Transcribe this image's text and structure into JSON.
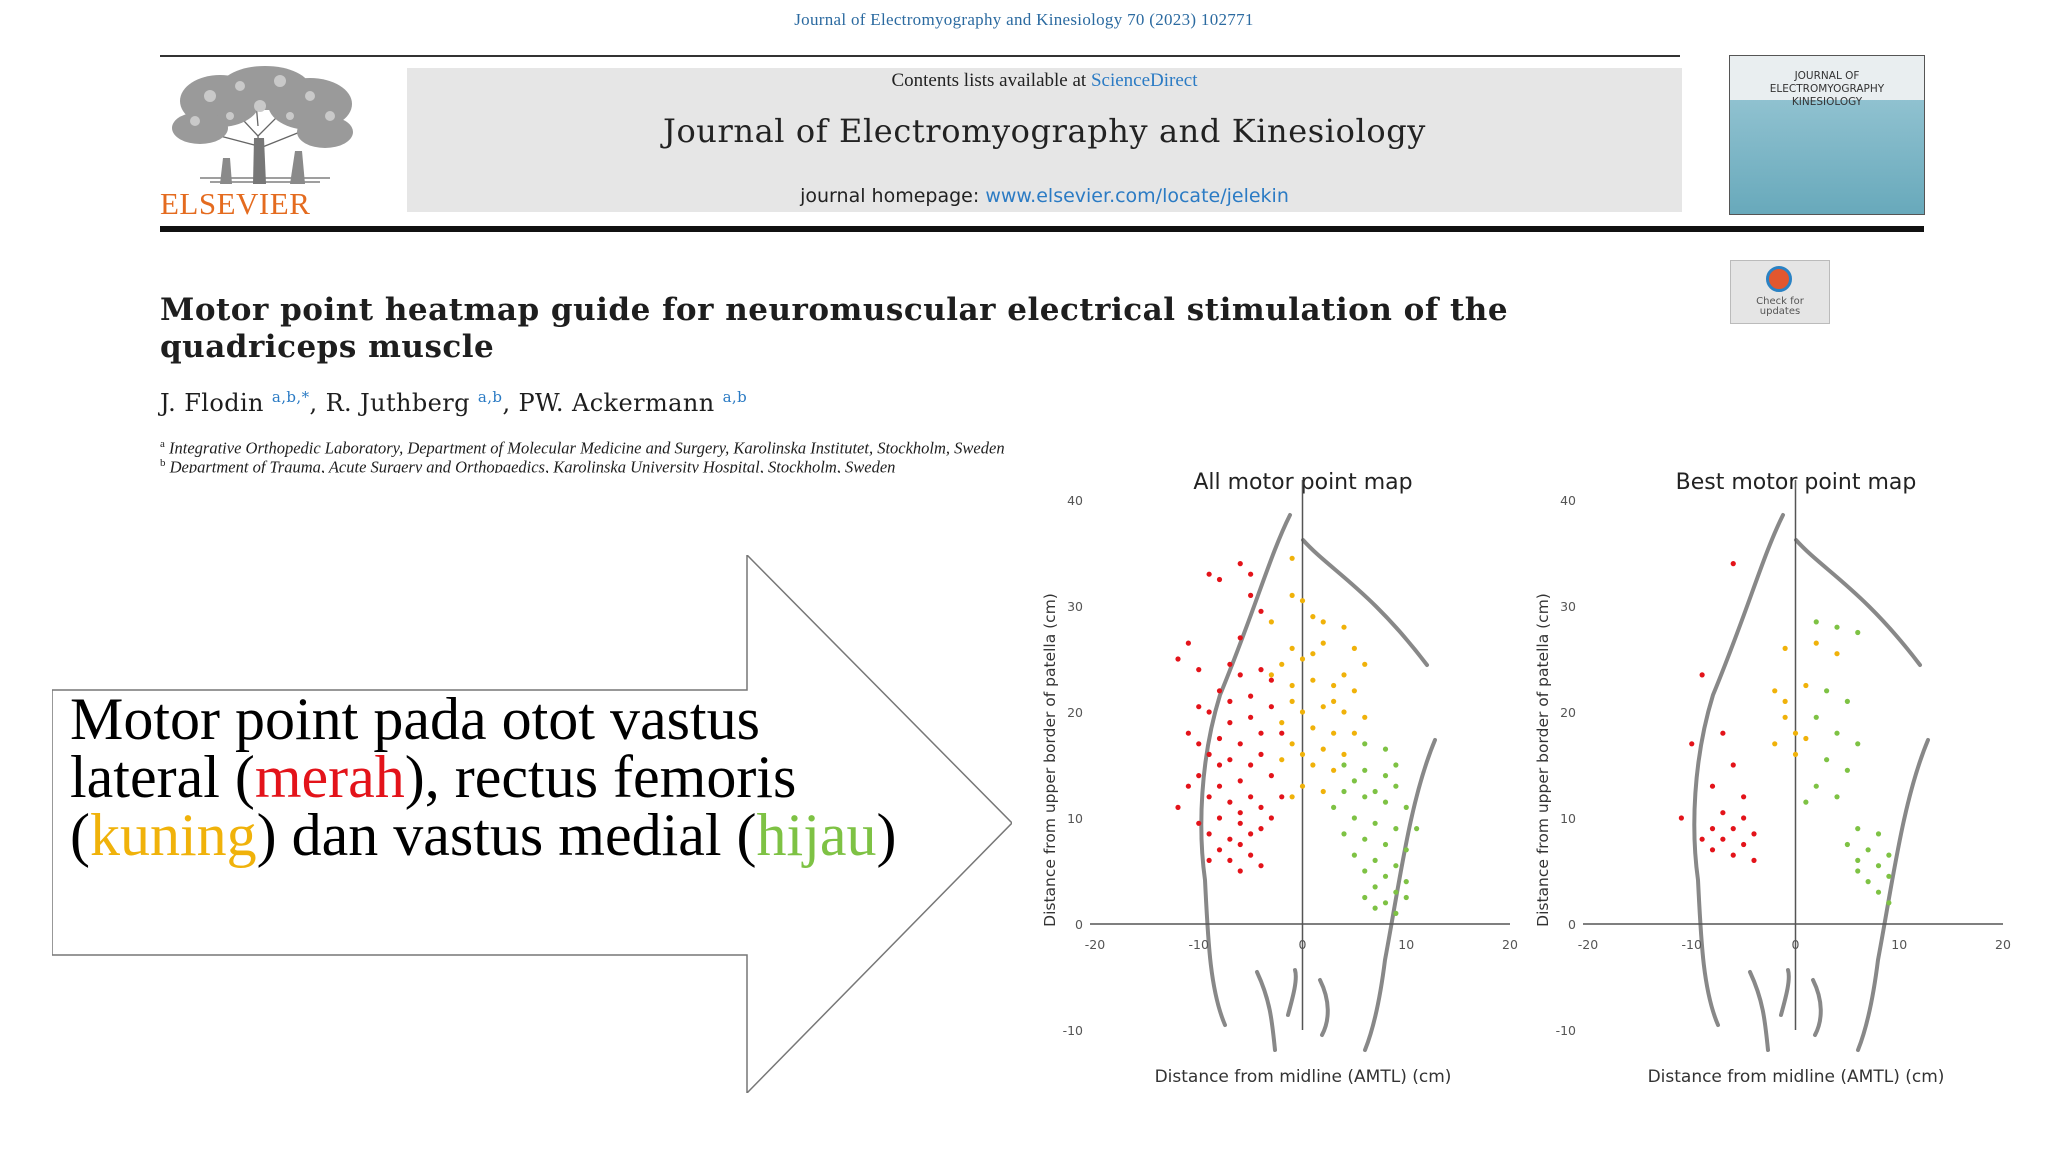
{
  "citation": "Journal of Electromyography and Kinesiology 70 (2023) 102771",
  "publisher": "ELSEVIER",
  "banner": {
    "contents_prefix": "Contents lists available at",
    "sciencedirect": "ScienceDirect",
    "journal_title": "Journal of Electromyography and Kinesiology",
    "homepage_prefix": "journal homepage:",
    "homepage_url": "www.elsevier.com/locate/jelekin"
  },
  "cover": {
    "line1": "JOURNAL OF",
    "line2": "ELECTROMYOGRAPHY",
    "line3": "KINESIOLOGY"
  },
  "check_updates": {
    "line1": "Check for",
    "line2": "updates"
  },
  "article": {
    "title": "Motor point heatmap guide for neuromuscular electrical stimulation of the quadriceps muscle",
    "authors": [
      {
        "name": "J. Flodin",
        "sup": "a,b,*",
        "sep": ", "
      },
      {
        "name": "R. Juthberg",
        "sup": "a,b",
        "sep": ", "
      },
      {
        "name": "PW. Ackermann",
        "sup": "a,b",
        "sep": ""
      }
    ],
    "affiliations": [
      {
        "mark": "a",
        "text": "Integrative Orthopedic Laboratory, Department of Molecular Medicine and Surgery, Karolinska Institutet, Stockholm, Sweden"
      },
      {
        "mark": "b",
        "text": "Department of Trauma, Acute Surgery and Orthopaedics, Karolinska University Hospital, Stockholm, Sweden"
      }
    ]
  },
  "callout": {
    "t1": "Motor point pada otot vastus lateral (",
    "red": "merah",
    "t2": "), rectus femoris (",
    "yellow": "kuning",
    "t3": ") dan vastus medial (",
    "green": "hijau",
    "t4": ")"
  },
  "colors": {
    "red": "#e3131a",
    "yellow": "#f0b20a",
    "green": "#7ec244",
    "link": "#2b7bc4",
    "publisher": "#e46b1f"
  },
  "chart_data": [
    {
      "type": "scatter",
      "title": "All motor point map",
      "xlabel": "Distance from midline (AMTL) (cm)",
      "ylabel": "Distance from upper border of patella (cm)",
      "xlim": [
        -20,
        20
      ],
      "ylim": [
        -10,
        40
      ],
      "xticks": [
        "-20",
        "-10",
        "0",
        "10",
        "20"
      ],
      "yticks": [
        "40",
        "30",
        "20",
        "10",
        "0",
        "-10"
      ],
      "series": [
        {
          "name": "vastus lateral",
          "color": "#e3131a",
          "points": [
            [
              -12,
              25
            ],
            [
              -11,
              26.5
            ],
            [
              -10,
              24
            ],
            [
              -9,
              33
            ],
            [
              -8,
              32.5
            ],
            [
              -6,
              34
            ],
            [
              -5,
              33
            ],
            [
              -5,
              31
            ],
            [
              -4,
              29.5
            ],
            [
              -6,
              27
            ],
            [
              -8,
              22
            ],
            [
              -7,
              21
            ],
            [
              -9,
              20
            ],
            [
              -7,
              19
            ],
            [
              -5,
              19.5
            ],
            [
              -4,
              18
            ],
            [
              -6,
              17
            ],
            [
              -8,
              17.5
            ],
            [
              -10,
              17
            ],
            [
              -9,
              16
            ],
            [
              -7,
              15.5
            ],
            [
              -5,
              15
            ],
            [
              -4,
              16
            ],
            [
              -3,
              14
            ],
            [
              -6,
              13.5
            ],
            [
              -8,
              13
            ],
            [
              -10,
              14
            ],
            [
              -11,
              13
            ],
            [
              -9,
              12
            ],
            [
              -7,
              11.5
            ],
            [
              -5,
              12
            ],
            [
              -4,
              11
            ],
            [
              -6,
              10.5
            ],
            [
              -8,
              10
            ],
            [
              -10,
              9.5
            ],
            [
              -9,
              8.5
            ],
            [
              -7,
              8
            ],
            [
              -5,
              8.5
            ],
            [
              -4,
              9
            ],
            [
              -6,
              7.5
            ],
            [
              -8,
              7
            ],
            [
              -7,
              6
            ],
            [
              -5,
              6.5
            ],
            [
              -9,
              6
            ],
            [
              -6,
              5
            ],
            [
              -4,
              5.5
            ],
            [
              -3,
              20.5
            ],
            [
              -3,
              23
            ],
            [
              -6,
              23.5
            ],
            [
              -4,
              24
            ],
            [
              -2,
              18
            ],
            [
              -2,
              12
            ],
            [
              -3,
              10
            ],
            [
              -11,
              18
            ],
            [
              -12,
              11
            ],
            [
              -10,
              20.5
            ],
            [
              -5,
              21.5
            ],
            [
              -7,
              24.5
            ],
            [
              -6,
              9.5
            ],
            [
              -8,
              15
            ]
          ]
        },
        {
          "name": "rectus femoris",
          "color": "#f0b20a",
          "points": [
            [
              -1,
              34.5
            ],
            [
              -1,
              31
            ],
            [
              1,
              29
            ],
            [
              2,
              28.5
            ],
            [
              4,
              28
            ],
            [
              -1,
              26
            ],
            [
              0,
              25
            ],
            [
              -2,
              24.5
            ],
            [
              -3,
              23.5
            ],
            [
              1,
              23
            ],
            [
              3,
              22.5
            ],
            [
              5,
              22
            ],
            [
              6,
              24.5
            ],
            [
              -1,
              21
            ],
            [
              0,
              20
            ],
            [
              2,
              20.5
            ],
            [
              4,
              20
            ],
            [
              6,
              19.5
            ],
            [
              -2,
              19
            ],
            [
              1,
              18.5
            ],
            [
              3,
              18
            ],
            [
              5,
              18
            ],
            [
              -1,
              17
            ],
            [
              0,
              16
            ],
            [
              2,
              16.5
            ],
            [
              4,
              16
            ],
            [
              -2,
              15.5
            ],
            [
              1,
              15
            ],
            [
              3,
              14.5
            ],
            [
              0,
              13
            ],
            [
              -1,
              12
            ],
            [
              2,
              12.5
            ],
            [
              3,
              21
            ],
            [
              1,
              25.5
            ],
            [
              -3,
              28.5
            ],
            [
              0,
              30.5
            ],
            [
              5,
              26
            ],
            [
              2,
              26.5
            ],
            [
              -1,
              22.5
            ],
            [
              4,
              23.5
            ]
          ]
        },
        {
          "name": "vastus medial",
          "color": "#7ec244",
          "points": [
            [
              6,
              17
            ],
            [
              8,
              16.5
            ],
            [
              4,
              15
            ],
            [
              6,
              14.5
            ],
            [
              8,
              14
            ],
            [
              9,
              13
            ],
            [
              4,
              12.5
            ],
            [
              6,
              12
            ],
            [
              8,
              11.5
            ],
            [
              10,
              11
            ],
            [
              5,
              10
            ],
            [
              7,
              9.5
            ],
            [
              9,
              9
            ],
            [
              4,
              8.5
            ],
            [
              6,
              8
            ],
            [
              8,
              7.5
            ],
            [
              10,
              7
            ],
            [
              5,
              6.5
            ],
            [
              7,
              6
            ],
            [
              9,
              5.5
            ],
            [
              6,
              5
            ],
            [
              8,
              4.5
            ],
            [
              10,
              4
            ],
            [
              7,
              3.5
            ],
            [
              9,
              3
            ],
            [
              6,
              2.5
            ],
            [
              8,
              2
            ],
            [
              9,
              1
            ],
            [
              7,
              1.5
            ],
            [
              10,
              2.5
            ],
            [
              5,
              13.5
            ],
            [
              7,
              12.5
            ],
            [
              3,
              11
            ],
            [
              11,
              9
            ],
            [
              9,
              15
            ]
          ]
        }
      ]
    },
    {
      "type": "scatter",
      "title": "Best motor point map",
      "xlabel": "Distance from midline (AMTL) (cm)",
      "ylabel": "Distance from upper border of patella (cm)",
      "xlim": [
        -20,
        20
      ],
      "ylim": [
        -10,
        40
      ],
      "xticks": [
        "-20",
        "-10",
        "0",
        "10",
        "20"
      ],
      "yticks": [
        "40",
        "30",
        "20",
        "10",
        "0",
        "-10"
      ],
      "series": [
        {
          "name": "vastus lateral",
          "color": "#e3131a",
          "points": [
            [
              -6,
              34
            ],
            [
              -9,
              23.5
            ],
            [
              -7,
              18
            ],
            [
              -10,
              17
            ],
            [
              -6,
              15
            ],
            [
              -8,
              13
            ],
            [
              -5,
              12
            ],
            [
              -7,
              10.5
            ],
            [
              -8,
              9
            ],
            [
              -6,
              9
            ],
            [
              -4,
              8.5
            ],
            [
              -7,
              8
            ],
            [
              -5,
              7.5
            ],
            [
              -9,
              8
            ],
            [
              -6,
              6.5
            ],
            [
              -4,
              6
            ],
            [
              -8,
              7
            ],
            [
              -11,
              10
            ],
            [
              -5,
              10
            ]
          ]
        },
        {
          "name": "rectus femoris",
          "color": "#f0b20a",
          "points": [
            [
              -1,
              26
            ],
            [
              2,
              26.5
            ],
            [
              4,
              25.5
            ],
            [
              -2,
              22
            ],
            [
              1,
              22.5
            ],
            [
              -1,
              19.5
            ],
            [
              0,
              18
            ],
            [
              -2,
              17
            ],
            [
              1,
              17.5
            ],
            [
              0,
              16
            ],
            [
              -1,
              21
            ]
          ]
        },
        {
          "name": "vastus medial",
          "color": "#7ec244",
          "points": [
            [
              2,
              28.5
            ],
            [
              4,
              28
            ],
            [
              6,
              27.5
            ],
            [
              3,
              22
            ],
            [
              5,
              21
            ],
            [
              2,
              19.5
            ],
            [
              4,
              18
            ],
            [
              6,
              17
            ],
            [
              3,
              15.5
            ],
            [
              5,
              14.5
            ],
            [
              2,
              13
            ],
            [
              4,
              12
            ],
            [
              1,
              11.5
            ],
            [
              6,
              9
            ],
            [
              8,
              8.5
            ],
            [
              5,
              7.5
            ],
            [
              7,
              7
            ],
            [
              9,
              6.5
            ],
            [
              6,
              6
            ],
            [
              8,
              5.5
            ],
            [
              9,
              4.5
            ],
            [
              7,
              4
            ],
            [
              8,
              3
            ],
            [
              9,
              2
            ],
            [
              6,
              5
            ]
          ]
        }
      ]
    }
  ]
}
